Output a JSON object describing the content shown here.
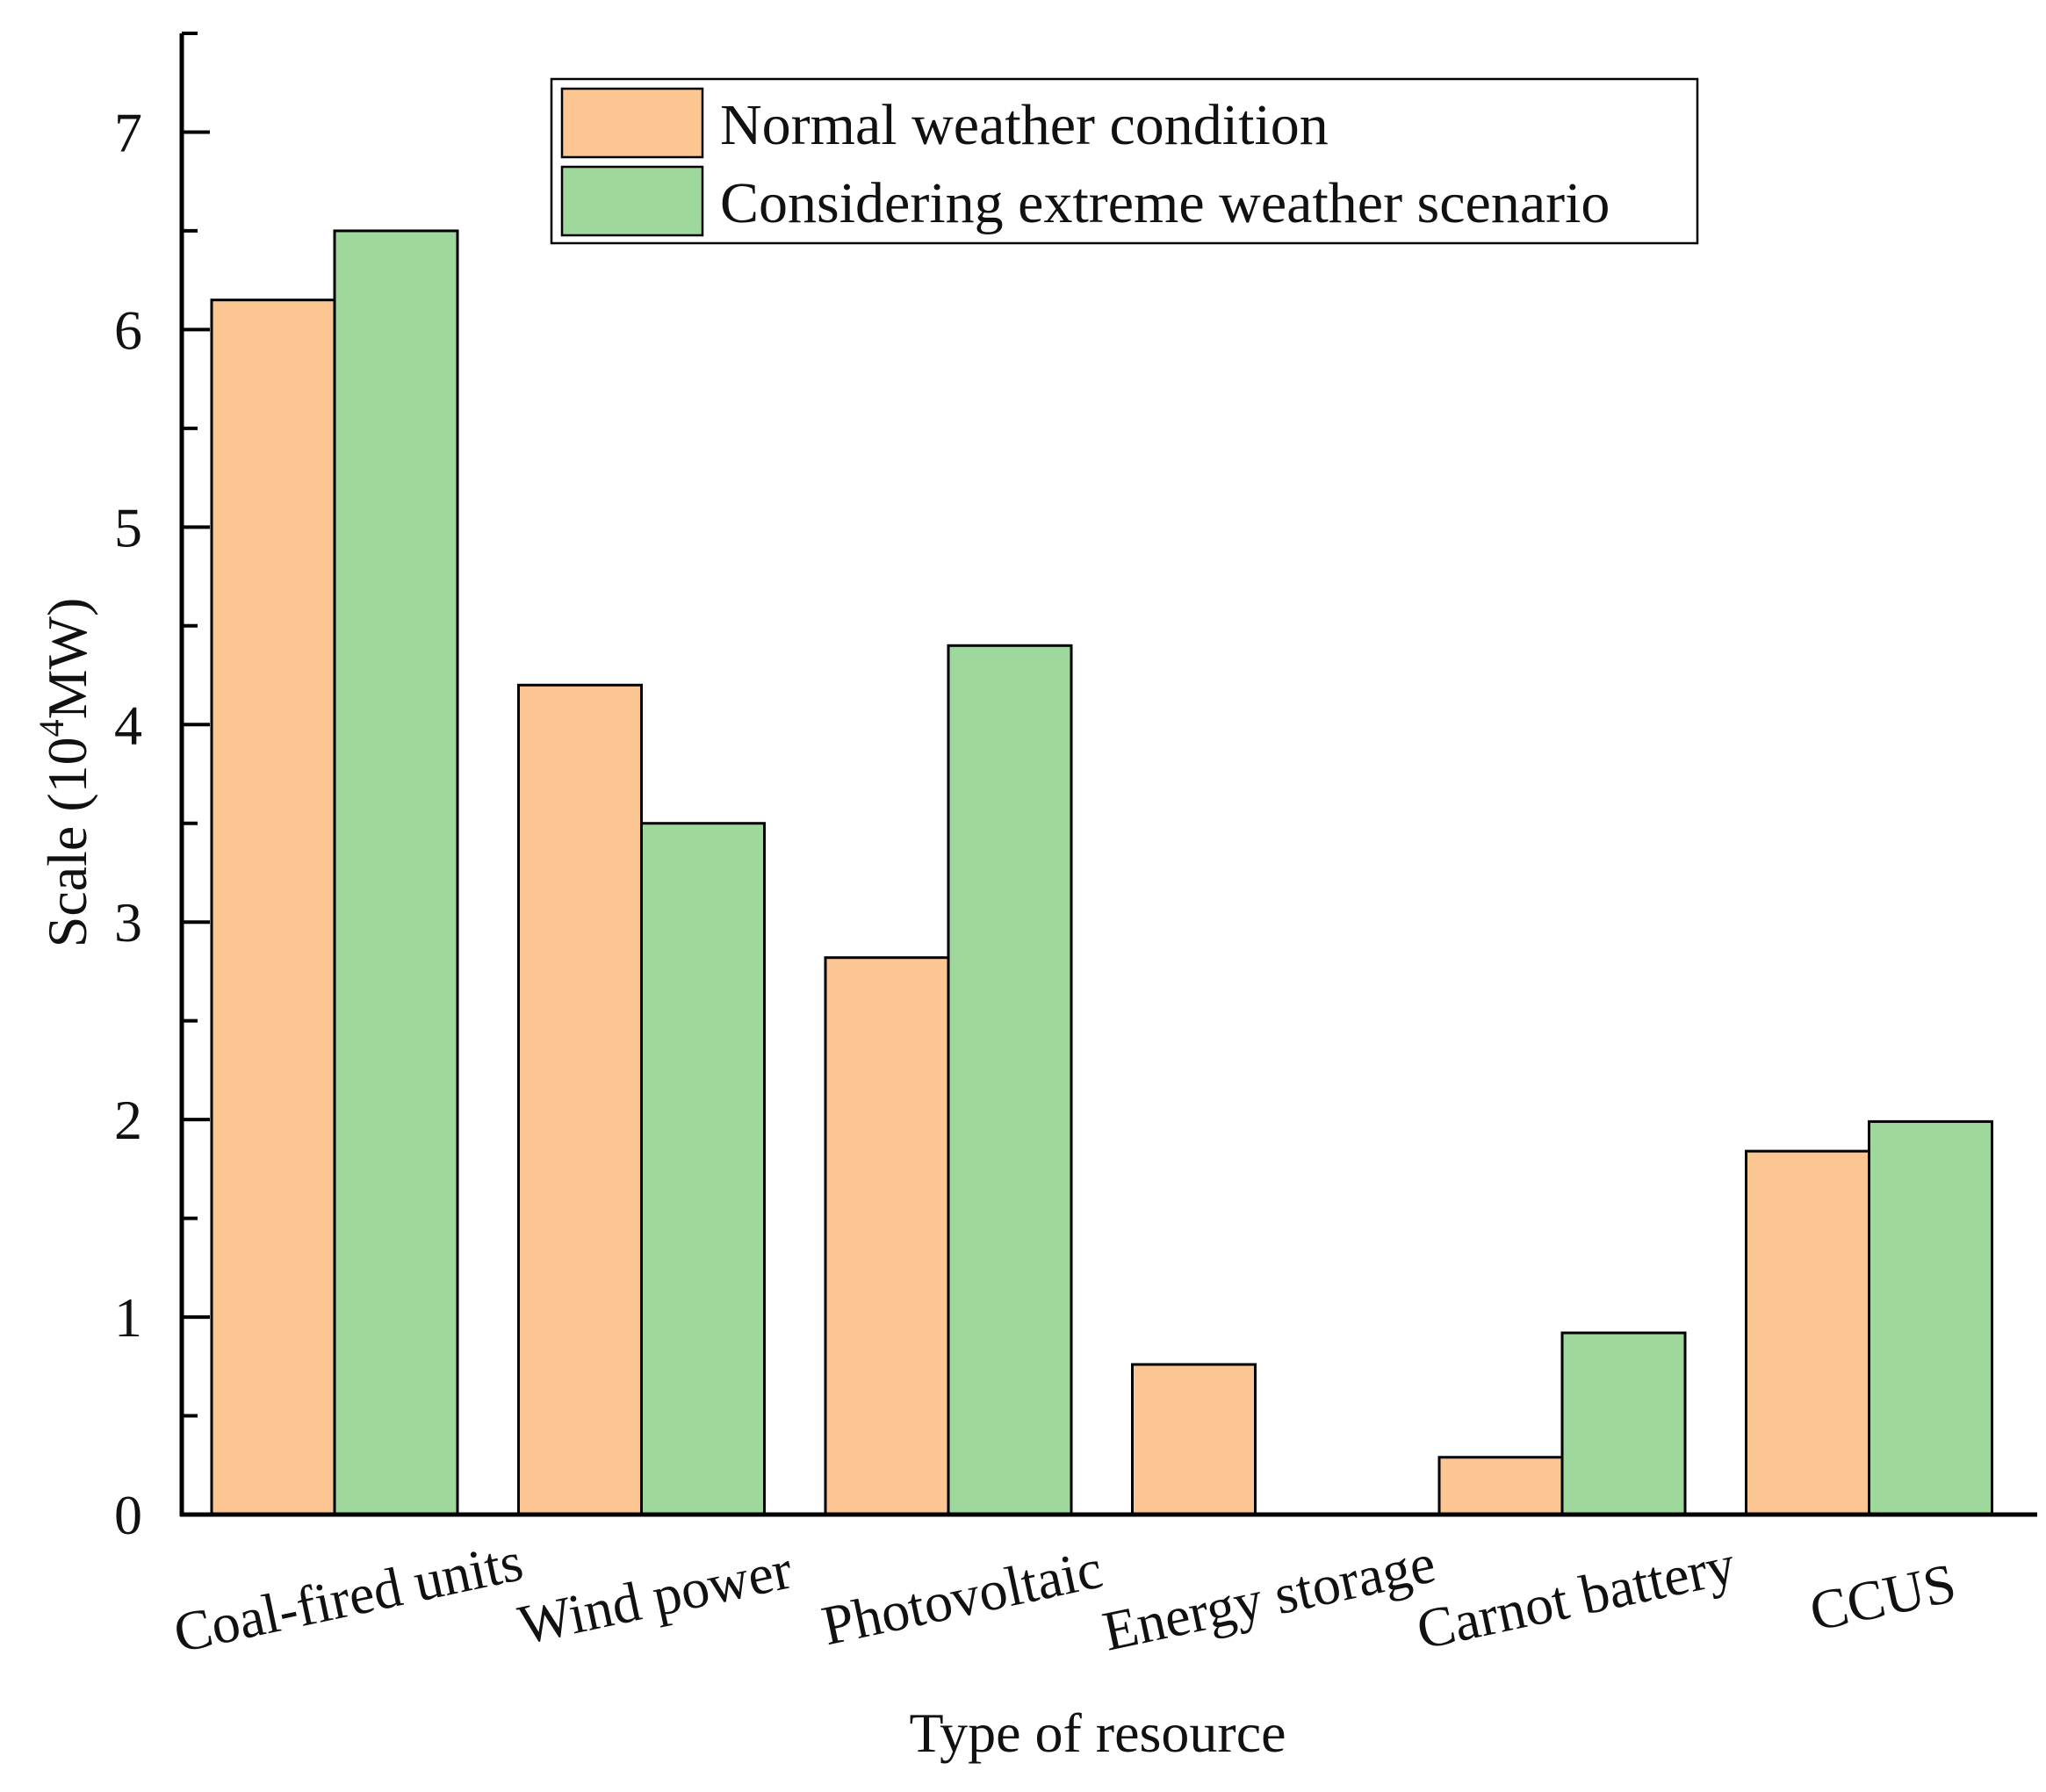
{
  "chart_data": {
    "type": "bar",
    "categories": [
      "Coal-fired units",
      "Wind power",
      "Photovoltaic",
      "Energy storage",
      "Carnot battery",
      "CCUS"
    ],
    "series": [
      {
        "name": "Normal weather condition",
        "color": "#fcc693",
        "values": [
          6.15,
          4.2,
          2.82,
          0.76,
          0.29,
          1.84
        ]
      },
      {
        "name": "Considering extreme weather scenario",
        "color": "#9fd89c",
        "values": [
          6.5,
          3.5,
          4.4,
          0.0,
          0.92,
          1.99
        ]
      }
    ],
    "title": "",
    "xlabel": "Type of resource",
    "ylabel": {
      "prefix": "Scale (10",
      "sup": "4",
      "suffix": "MW)"
    },
    "ylim": [
      0,
      7.5
    ],
    "yticks": [
      0,
      1,
      2,
      3,
      4,
      5,
      6,
      7
    ],
    "minor_step": 0.5,
    "grid": false,
    "legend_position": "top-center",
    "colors": {
      "axis": "#000000",
      "bar_edge": "#000000"
    }
  }
}
